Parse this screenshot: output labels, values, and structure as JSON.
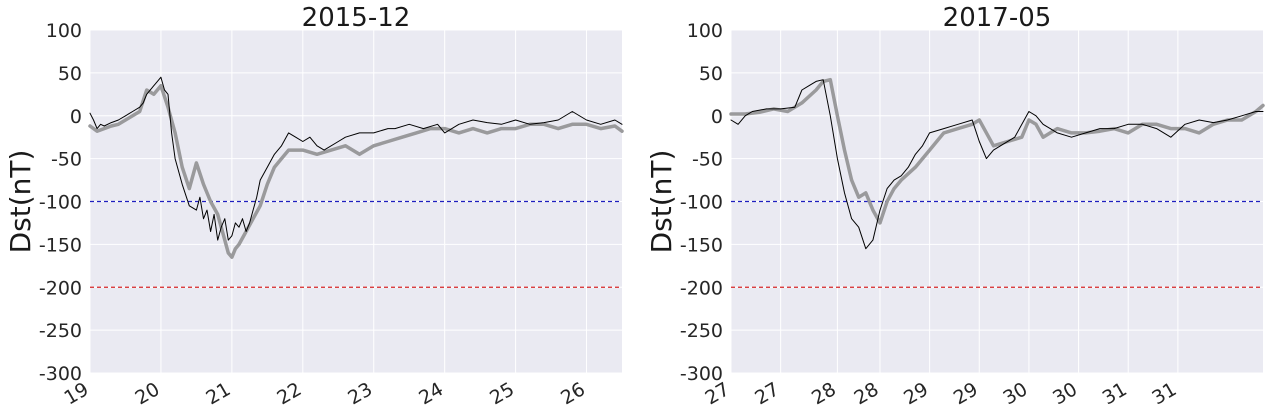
{
  "chart_data": [
    {
      "type": "line",
      "title": "2015-12",
      "xlabel": "",
      "ylabel": "Dst(nT)",
      "xlim": [
        19,
        26.5
      ],
      "ylim": [
        -300,
        100
      ],
      "xticks": [
        19,
        20,
        21,
        22,
        23,
        24,
        25,
        26
      ],
      "xtick_labels": [
        "19",
        "20",
        "21",
        "22",
        "23",
        "24",
        "25",
        "26"
      ],
      "yticks": [
        100,
        50,
        0,
        -50,
        -100,
        -150,
        -200,
        -250,
        -300
      ],
      "reference_lines": [
        {
          "y": -100,
          "color": "#1f1fbf",
          "style": "dashed"
        },
        {
          "y": -200,
          "color": "#d62728",
          "style": "dashed"
        }
      ],
      "grid": true,
      "series": [
        {
          "color": "#000000",
          "width": 1,
          "x": [
            19.0,
            19.05,
            19.1,
            19.15,
            19.2,
            19.3,
            19.4,
            19.5,
            19.6,
            19.7,
            19.75,
            19.8,
            19.9,
            19.95,
            20.0,
            20.05,
            20.1,
            20.15,
            20.2,
            20.3,
            20.4,
            20.5,
            20.55,
            20.6,
            20.65,
            20.7,
            20.75,
            20.8,
            20.85,
            20.9,
            20.95,
            21.0,
            21.05,
            21.1,
            21.15,
            21.2,
            21.25,
            21.3,
            21.35,
            21.4,
            21.5,
            21.6,
            21.7,
            21.8,
            21.9,
            22.0,
            22.1,
            22.2,
            22.3,
            22.5,
            22.6,
            22.8,
            23.0,
            23.2,
            23.3,
            23.5,
            23.7,
            23.9,
            24.0,
            24.2,
            24.4,
            24.6,
            24.8,
            25.0,
            25.2,
            25.4,
            25.6,
            25.8,
            26.0,
            26.2,
            26.4,
            26.5
          ],
          "y": [
            3,
            -5,
            -15,
            -10,
            -12,
            -8,
            -5,
            0,
            5,
            10,
            15,
            25,
            35,
            40,
            45,
            30,
            25,
            -20,
            -50,
            -80,
            -105,
            -110,
            -95,
            -120,
            -110,
            -135,
            -115,
            -145,
            -130,
            -120,
            -145,
            -140,
            -125,
            -130,
            -120,
            -135,
            -125,
            -110,
            -95,
            -75,
            -60,
            -45,
            -35,
            -20,
            -25,
            -30,
            -25,
            -35,
            -40,
            -30,
            -25,
            -20,
            -20,
            -15,
            -15,
            -10,
            -15,
            -10,
            -20,
            -10,
            -5,
            -8,
            -10,
            -5,
            -10,
            -8,
            -5,
            5,
            -5,
            -10,
            -5,
            -10
          ]
        },
        {
          "color": "#9a9a9c",
          "width": 3.5,
          "x": [
            19.0,
            19.1,
            19.2,
            19.3,
            19.4,
            19.5,
            19.6,
            19.7,
            19.8,
            19.9,
            20.0,
            20.1,
            20.2,
            20.3,
            20.4,
            20.5,
            20.6,
            20.7,
            20.8,
            20.9,
            20.95,
            21.0,
            21.05,
            21.1,
            21.2,
            21.3,
            21.4,
            21.5,
            21.6,
            21.7,
            21.8,
            22.0,
            22.2,
            22.4,
            22.6,
            22.8,
            23.0,
            23.2,
            23.4,
            23.6,
            23.8,
            24.0,
            24.2,
            24.4,
            24.6,
            24.8,
            25.0,
            25.2,
            25.4,
            25.6,
            25.8,
            26.0,
            26.2,
            26.4,
            26.5
          ],
          "y": [
            -12,
            -18,
            -15,
            -12,
            -10,
            -5,
            0,
            5,
            30,
            25,
            35,
            10,
            -20,
            -60,
            -85,
            -55,
            -80,
            -100,
            -115,
            -145,
            -160,
            -165,
            -155,
            -150,
            -135,
            -120,
            -105,
            -80,
            -60,
            -50,
            -40,
            -40,
            -45,
            -40,
            -35,
            -45,
            -35,
            -30,
            -25,
            -20,
            -15,
            -15,
            -20,
            -15,
            -20,
            -15,
            -15,
            -10,
            -10,
            -15,
            -10,
            -10,
            -15,
            -12,
            -18
          ]
        }
      ]
    },
    {
      "type": "line",
      "title": "2017-05",
      "xlabel": "",
      "ylabel": "Dst(nT)",
      "xlim": [
        0,
        7.5
      ],
      "ylim": [
        -300,
        100
      ],
      "xticks": [
        0,
        0.7,
        1.5,
        2.1,
        2.8,
        3.5,
        4.2,
        4.9,
        5.6,
        6.3
      ],
      "xtick_labels": [
        "27",
        "27",
        "28",
        "28",
        "29",
        "29",
        "30",
        "30",
        "31",
        "31"
      ],
      "yticks": [
        100,
        50,
        0,
        -50,
        -100,
        -150,
        -200,
        -250,
        -300
      ],
      "reference_lines": [
        {
          "y": -100,
          "color": "#1f1fbf",
          "style": "dashed"
        },
        {
          "y": -200,
          "color": "#d62728",
          "style": "dashed"
        }
      ],
      "grid": true,
      "series": [
        {
          "color": "#000000",
          "width": 1,
          "x": [
            0,
            0.1,
            0.2,
            0.3,
            0.5,
            0.7,
            0.9,
            1.0,
            1.1,
            1.2,
            1.3,
            1.4,
            1.5,
            1.6,
            1.7,
            1.8,
            1.9,
            2.0,
            2.1,
            2.2,
            2.3,
            2.4,
            2.5,
            2.6,
            2.7,
            2.8,
            3.0,
            3.2,
            3.4,
            3.5,
            3.6,
            3.7,
            3.8,
            4.0,
            4.2,
            4.3,
            4.4,
            4.5,
            4.6,
            4.8,
            5.0,
            5.2,
            5.4,
            5.6,
            5.8,
            6.0,
            6.2,
            6.4,
            6.6,
            6.8,
            7.0,
            7.2,
            7.4,
            7.5
          ],
          "y": [
            -5,
            -10,
            0,
            5,
            8,
            8,
            10,
            30,
            35,
            40,
            42,
            0,
            -50,
            -90,
            -120,
            -130,
            -155,
            -145,
            -110,
            -85,
            -75,
            -70,
            -60,
            -45,
            -35,
            -20,
            -15,
            -10,
            -5,
            -30,
            -50,
            -40,
            -35,
            -25,
            5,
            0,
            -10,
            -15,
            -20,
            -25,
            -20,
            -15,
            -15,
            -10,
            -10,
            -15,
            -25,
            -10,
            -5,
            -8,
            -5,
            0,
            5,
            5
          ]
        },
        {
          "color": "#9a9a9c",
          "width": 3.5,
          "x": [
            0,
            0.2,
            0.4,
            0.6,
            0.8,
            1.0,
            1.2,
            1.3,
            1.4,
            1.5,
            1.6,
            1.7,
            1.8,
            1.9,
            2.0,
            2.1,
            2.2,
            2.3,
            2.4,
            2.6,
            2.8,
            3.0,
            3.2,
            3.4,
            3.5,
            3.7,
            3.9,
            4.1,
            4.2,
            4.3,
            4.4,
            4.5,
            4.6,
            4.8,
            5.0,
            5.2,
            5.4,
            5.6,
            5.8,
            6.0,
            6.2,
            6.4,
            6.6,
            6.8,
            7.0,
            7.2,
            7.4,
            7.5
          ],
          "y": [
            2,
            2,
            4,
            8,
            5,
            15,
            30,
            40,
            42,
            0,
            -40,
            -75,
            -95,
            -90,
            -110,
            -125,
            -100,
            -85,
            -75,
            -60,
            -40,
            -20,
            -15,
            -10,
            -5,
            -35,
            -30,
            -25,
            -5,
            -10,
            -25,
            -20,
            -15,
            -20,
            -20,
            -18,
            -15,
            -20,
            -10,
            -10,
            -15,
            -15,
            -20,
            -10,
            -5,
            -5,
            5,
            12
          ]
        }
      ]
    }
  ]
}
